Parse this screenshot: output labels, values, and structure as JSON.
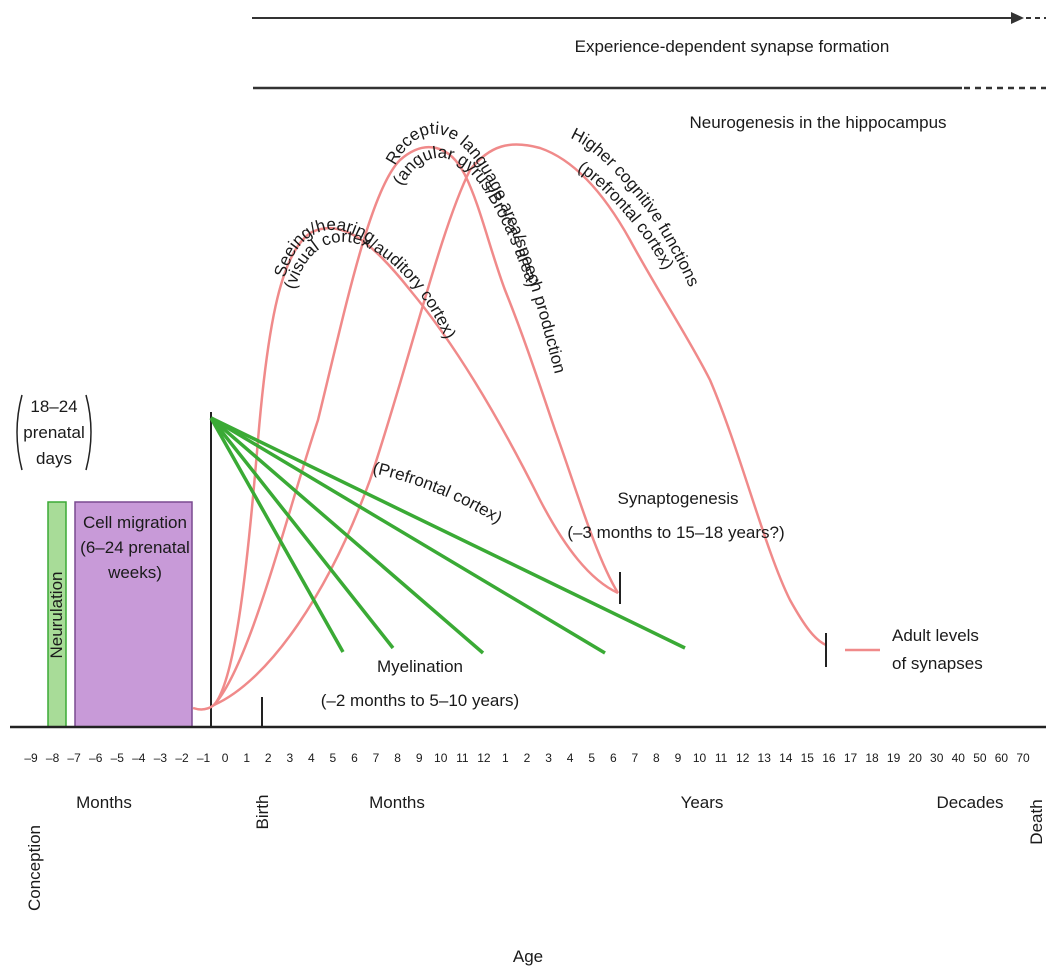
{
  "top_bars": {
    "experience_dependent": "Experience-dependent synapse formation",
    "neurogenesis": "Neurogenesis in the hippocampus"
  },
  "prenatal_days": [
    "18–24",
    "prenatal",
    "days"
  ],
  "neurulation": "Neurulation",
  "cell_migration": [
    "Cell migration",
    "(6–24 prenatal",
    "weeks)"
  ],
  "curves": {
    "seeing": [
      "Seeing/hearing",
      "(visual cortex/auditory cortex)"
    ],
    "receptive": [
      "Receptive language area/speech production",
      "(angular gyrus/Broca's area)"
    ],
    "higher": [
      "Higher cognitive functions",
      "(prefrontal cortex)"
    ]
  },
  "prefrontal_label": "(Prefrontal cortex)",
  "synaptogenesis": [
    "Synaptogenesis",
    "(–3 months to 15–18 years?)"
  ],
  "myelination": [
    "Myelination",
    "(–2 months to 5–10 years)"
  ],
  "adult_levels": [
    "Adult levels",
    "of synapses"
  ],
  "tick_labels": [
    "–9",
    "–8",
    "–7",
    "–6",
    "–5",
    "–4",
    "–3",
    "–2",
    "–1",
    "0",
    "1",
    "2",
    "3",
    "4",
    "5",
    "6",
    "7",
    "8",
    "9",
    "10",
    "11",
    "12",
    "1",
    "2",
    "3",
    "4",
    "5",
    "6",
    "7",
    "8",
    "9",
    "10",
    "11",
    "12",
    "13",
    "14",
    "15",
    "16",
    "17",
    "18",
    "19",
    "20",
    "30",
    "40",
    "50",
    "60",
    "70"
  ],
  "axis_words": {
    "conception": "Conception",
    "months1": "Months",
    "birth": "Birth",
    "months2": "Months",
    "years": "Years",
    "decades": "Decades",
    "death": "Death",
    "age": "Age"
  },
  "colors": {
    "curve": "#f08a8a",
    "myelin": "#3aaa35",
    "neurulation_fill": "#a8dc98",
    "neurulation_stroke": "#3aaa35",
    "migration_fill": "#c89ad8",
    "migration_stroke": "#7a4a90",
    "line": "#333333"
  }
}
